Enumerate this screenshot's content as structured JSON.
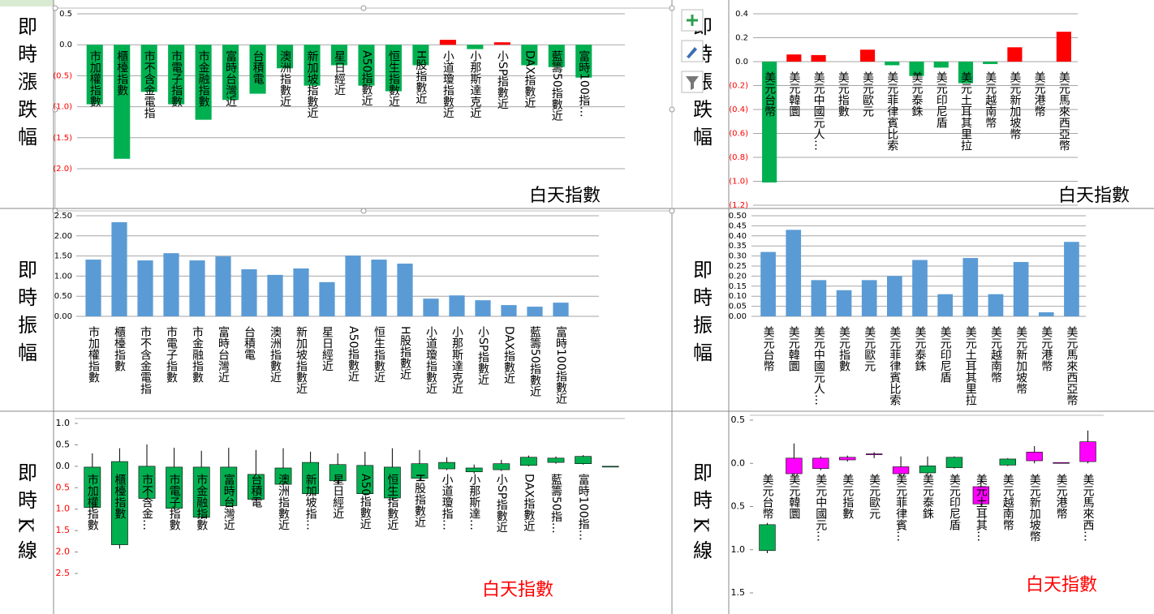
{
  "row_labels": [
    "即時漲跌幅",
    "即時漲跌幅",
    "即時振幅",
    "即時振幅",
    "即時K線",
    "即時K線"
  ],
  "chart_data": [
    {
      "type": "bar",
      "title": "白天指數",
      "title_color": "#000000",
      "categories": [
        "市加權指數",
        "櫃檯指數",
        "市不含金電指",
        "市電子指數",
        "市金融指數",
        "富時台灣近",
        "台積電",
        "澳洲指數近",
        "新加坡指數近",
        "星日經近",
        "A50指數近",
        "恒生指數近",
        "H股指數近",
        "小道瓊指數近",
        "小那斯達克近",
        "小SP指數近",
        "DAX指數近",
        "藍籌50指數近",
        "富時100指…"
      ],
      "values": [
        -0.96,
        -1.84,
        -0.76,
        -0.96,
        -1.21,
        -0.89,
        -0.79,
        -0.38,
        -0.66,
        -0.33,
        -0.66,
        -0.75,
        -0.33,
        0.08,
        -0.07,
        0.04,
        -0.33,
        -0.36,
        -0.53
      ],
      "color": "#ff0000",
      "negative_color": "#00b050",
      "negative_tick_color": "#ff0000",
      "ylim": [
        -2.0,
        0.5
      ],
      "yticks": [
        0.5,
        {
          "value": 0,
          "label": "0.0"
        },
        {
          "value": -0.5,
          "label": "(0.5)"
        },
        {
          "value": -1.0,
          "label": "(1.0)"
        },
        {
          "value": -1.5,
          "label": "(1.5)"
        },
        {
          "value": -2.0,
          "label": "(2.0)"
        }
      ],
      "grid": true
    },
    {
      "type": "bar",
      "title": "白天指數",
      "title_color": "#000000",
      "categories": [
        "美元台幣",
        "美元韓圜",
        "美元中國元人…",
        "美元指數",
        "美元歐元",
        "美元菲律賓比索",
        "美元泰銖",
        "美元印尼盾",
        "美元土耳其里拉",
        "美元越南幣",
        "美元新加坡幣",
        "美元港幣",
        "美元馬來西亞幣"
      ],
      "values": [
        -1.01,
        0.06,
        0.055,
        0,
        0.1,
        -0.03,
        -0.12,
        -0.05,
        -0.18,
        -0.02,
        0.12,
        0,
        0.25
      ],
      "color": "#ff0000",
      "negative_color": "#00b050",
      "negative_tick_color": "#ff0000",
      "ylim": [
        -1.2,
        0.4
      ],
      "yticks": [
        0.4,
        0.2,
        {
          "value": 0,
          "label": "0.0"
        },
        {
          "value": -0.2,
          "label": "(0.2)"
        },
        {
          "value": -0.4,
          "label": "(0.4)"
        },
        {
          "value": -0.6,
          "label": "(0.6)"
        },
        {
          "value": -0.8,
          "label": "(0.8)"
        },
        {
          "value": -1.0,
          "label": "(1.0)"
        },
        {
          "value": -1.2,
          "label": "(1.2)"
        }
      ],
      "grid": true
    },
    {
      "type": "bar",
      "categories": [
        "市加權指數",
        "櫃檯指數",
        "市不含金電指",
        "市電子指數",
        "市金融指數",
        "富時台灣近",
        "台積電",
        "澳洲指數近",
        "新加坡指數近",
        "星日經近",
        "A50指數近",
        "恒生指數近",
        "H股指數近",
        "小道瓊指數近",
        "小那斯達克近",
        "小SP指數近",
        "DAX指數近",
        "藍籌50指數近",
        "富時100指數近"
      ],
      "values": [
        1.41,
        2.34,
        1.39,
        1.57,
        1.39,
        1.49,
        1.17,
        1.03,
        1.19,
        0.85,
        1.51,
        1.41,
        1.31,
        0.44,
        0.52,
        0.4,
        0.28,
        0.24,
        0.34
      ],
      "color": "#5b9bd5",
      "ylim": [
        0,
        2.5
      ],
      "yticks": [
        {
          "value": 0,
          "label": "0.00"
        },
        {
          "value": 0.5,
          "label": "0.50"
        },
        {
          "value": 1.0,
          "label": "1.00"
        },
        {
          "value": 1.5,
          "label": "1.50"
        },
        {
          "value": 2.0,
          "label": "2.00"
        },
        {
          "value": 2.5,
          "label": "2.50"
        }
      ],
      "grid": true
    },
    {
      "type": "bar",
      "categories": [
        "美元台幣",
        "美元韓圜",
        "美元中國元人…",
        "美元指數",
        "美元歐元",
        "美元菲律賓比索",
        "美元泰銖",
        "美元印尼盾",
        "美元土耳其里拉",
        "美元越南幣",
        "美元新加坡幣",
        "美元港幣",
        "美元馬來西亞幣"
      ],
      "values": [
        0.32,
        0.43,
        0.18,
        0.13,
        0.18,
        0.2,
        0.28,
        0.11,
        0.29,
        0.11,
        0.27,
        0.02,
        0.37
      ],
      "color": "#5b9bd5",
      "ylim": [
        0,
        0.5
      ],
      "yticks": [
        {
          "value": 0,
          "label": "0.00"
        },
        0.05,
        {
          "value": 0.1,
          "label": "0.10"
        },
        0.15,
        {
          "value": 0.2,
          "label": "0.20"
        },
        0.25,
        {
          "value": 0.3,
          "label": "0.30"
        },
        0.35,
        {
          "value": 0.4,
          "label": "0.40"
        },
        0.45,
        {
          "value": 0.5,
          "label": "0.50"
        }
      ],
      "grid": true
    },
    {
      "type": "candlestick",
      "title": "白天指數",
      "title_color": "#ff0000",
      "categories": [
        "市加權指數",
        "櫃檯指數",
        "市不含金…",
        "市電子指數",
        "市金融指數",
        "富時台灣近",
        "台積電",
        "澳洲指數近",
        "新加坡指…",
        "星日經近",
        "A50指數近",
        "恒生指數近",
        "H股指數近",
        "小道瓊指…",
        "小那斯達…",
        "小SP指數近",
        "DAX指數近",
        "藍籌50指…",
        "富時100指…",
        null
      ],
      "open": [
        -0.02,
        0.11,
        0.0,
        -0.02,
        -0.02,
        -0.02,
        -0.19,
        -0.04,
        0.09,
        0.04,
        0.02,
        -0.02,
        0.06,
        -0.06,
        -0.04,
        -0.08,
        0.02,
        0.09,
        0.06,
        0
      ],
      "high": [
        0.3,
        0.42,
        0.51,
        0.43,
        0.36,
        0.43,
        0.38,
        0.42,
        0.34,
        0.3,
        0.34,
        0.42,
        0.38,
        0.21,
        0.04,
        0.15,
        0.25,
        0.23,
        0.26,
        0
      ],
      "low": [
        -1.0,
        -1.92,
        -0.79,
        -1.0,
        -1.23,
        -0.95,
        -0.81,
        -0.47,
        -0.68,
        -0.42,
        -0.68,
        -0.79,
        -0.34,
        -0.09,
        -0.17,
        -0.11,
        0.0,
        0.06,
        0.04,
        0
      ],
      "close": [
        -0.96,
        -1.83,
        -0.75,
        -0.98,
        -1.19,
        -0.92,
        -0.77,
        -0.42,
        -0.64,
        -0.34,
        -0.64,
        -0.74,
        -0.28,
        0.09,
        -0.13,
        0.06,
        0.21,
        0.19,
        0.23,
        0
      ],
      "up_color": "#00b050",
      "down_color": "#00b050",
      "negative_tick_color": "#ff0000",
      "ylim": [
        -2.5,
        1.0
      ],
      "yticks": [
        {
          "value": 1.0,
          "label": "1.0"
        },
        0.5,
        {
          "value": 0,
          "label": "0.0"
        },
        {
          "value": -0.5,
          "label": "0.5"
        },
        {
          "value": -1.0,
          "label": "1.0"
        },
        {
          "value": -1.5,
          "label": "1.5"
        },
        {
          "value": -2.0,
          "label": "2.0"
        },
        {
          "value": -2.5,
          "label": "2.5"
        }
      ],
      "grid": false
    },
    {
      "type": "candlestick",
      "title": "白天指數",
      "title_color": "#ff0000",
      "categories": [
        "美元台幣",
        "美元韓圜",
        "美元中國元…",
        "美元指數",
        "美元歐元",
        "美元菲律賓…",
        "美元泰銖",
        "美元印尼盾",
        "美元土耳其…",
        "美元越南幣",
        "美元新加坡幣",
        "美元港幣",
        "美元馬來西…"
      ],
      "open": [
        -0.71,
        -0.12,
        -0.06,
        0.04,
        0.1,
        -0.12,
        -0.03,
        0.07,
        -0.47,
        0.05,
        0.03,
        0.0,
        0.02
      ],
      "high": [
        -0.69,
        0.23,
        0.08,
        0.09,
        0.13,
        0.08,
        0.08,
        0.08,
        -0.18,
        0.06,
        0.2,
        0.01,
        0.38
      ],
      "low": [
        -1.04,
        -0.14,
        -0.08,
        0.02,
        0.06,
        -0.15,
        -0.14,
        -0.06,
        -0.49,
        -0.03,
        0.0,
        0.0,
        0.0
      ],
      "close": [
        -1.01,
        0.06,
        0.06,
        0.07,
        0.11,
        -0.04,
        -0.11,
        -0.05,
        -0.27,
        -0.02,
        0.13,
        0.01,
        0.25
      ],
      "up_color": "#ff00ff",
      "down_color": "#00b050",
      "ylim": [
        -1.5,
        0.5
      ],
      "yticks": [
        0.5,
        {
          "value": 0,
          "label": "0.0"
        },
        {
          "value": -0.5,
          "label": "0.5"
        },
        {
          "value": -1.0,
          "label": "1.0"
        },
        {
          "value": -1.5,
          "label": "1.5"
        }
      ],
      "grid": false
    }
  ]
}
